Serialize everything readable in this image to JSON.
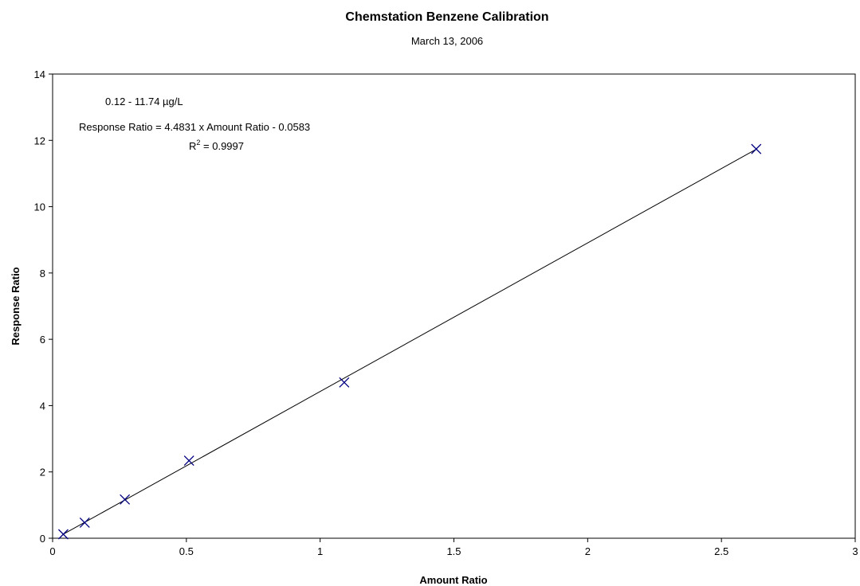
{
  "chart_data": {
    "type": "scatter",
    "title": "Chemstation Benzene Calibration",
    "subtitle": "March 13, 2006",
    "xlabel": "Amount Ratio",
    "ylabel": "Response Ratio",
    "xlim": [
      0,
      3
    ],
    "ylim": [
      0,
      14
    ],
    "x_ticks": [
      "0",
      "0.5",
      "1",
      "1.5",
      "2",
      "2.5",
      "3"
    ],
    "y_ticks": [
      "0",
      "2",
      "4",
      "6",
      "8",
      "10",
      "12",
      "14"
    ],
    "grid": false,
    "marker_color": "#000080",
    "line_color": "#000000",
    "series": [
      {
        "x": [
          0.04,
          0.12,
          0.27,
          0.51,
          1.09,
          2.63
        ],
        "y": [
          0.12,
          0.47,
          1.17,
          2.34,
          4.7,
          11.74
        ]
      }
    ],
    "trendline": {
      "slope": 4.4831,
      "intercept": -0.0583,
      "x_range": [
        0.04,
        2.63
      ]
    },
    "annotations": {
      "range": "0.12 - 11.74 µg/L",
      "equation": "Response Ratio = 4.4831 x Amount Ratio - 0.0583",
      "r2_prefix": "R",
      "r2_sup": "2",
      "r2_value": " = 0.9997"
    }
  }
}
